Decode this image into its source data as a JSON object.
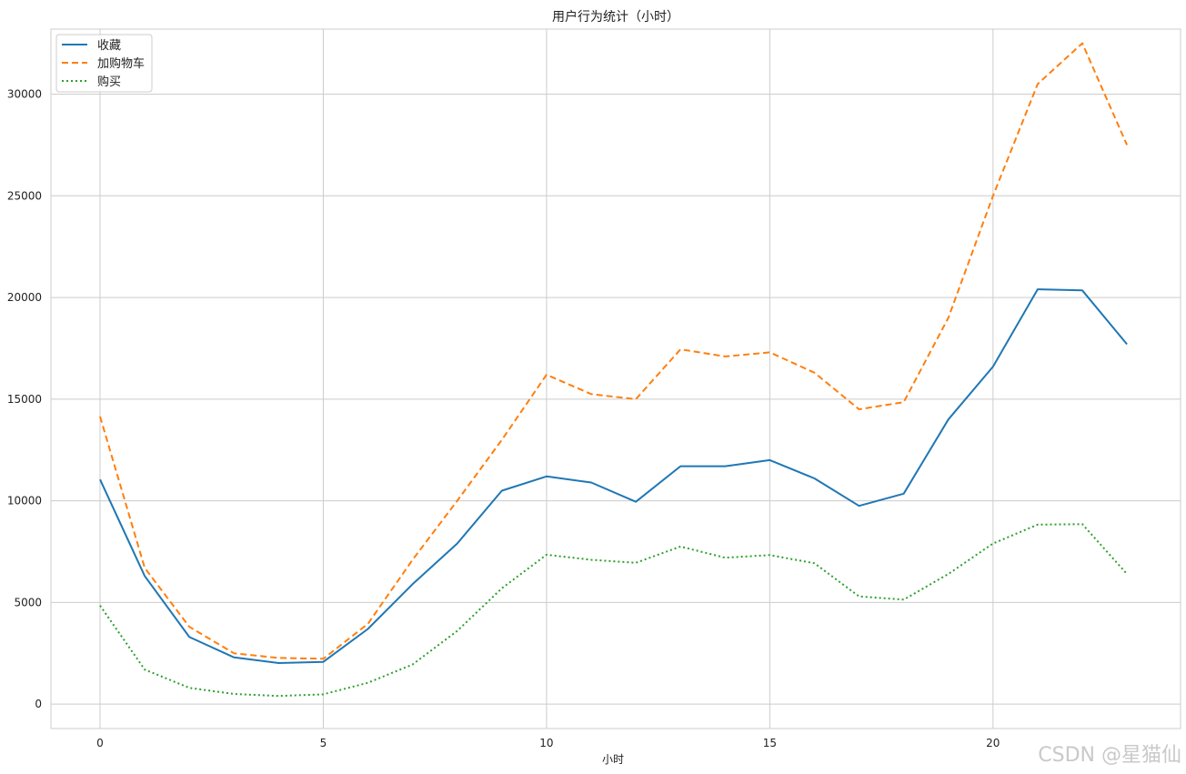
{
  "chart_data": {
    "type": "line",
    "title": "用户行为统计（小时）",
    "xlabel": "小时",
    "ylabel": "",
    "x": [
      0,
      1,
      2,
      3,
      4,
      5,
      6,
      7,
      8,
      9,
      10,
      11,
      12,
      13,
      14,
      15,
      16,
      17,
      18,
      19,
      20,
      21,
      22,
      23
    ],
    "xticks": [
      0,
      5,
      10,
      15,
      20
    ],
    "yticks": [
      0,
      5000,
      10000,
      15000,
      20000,
      25000,
      30000
    ],
    "xlim": [
      -1.1,
      24.2
    ],
    "ylim": [
      -1200,
      33200
    ],
    "grid": true,
    "legend_position": "top-left",
    "series": [
      {
        "name": "收藏",
        "color": "#1f77b4",
        "style": "solid",
        "values": [
          11050,
          6300,
          3300,
          2300,
          2020,
          2080,
          3700,
          5900,
          7900,
          10500,
          11200,
          10900,
          9950,
          11700,
          11700,
          12000,
          11100,
          9750,
          10350,
          14000,
          16600,
          20400,
          20350,
          17700
        ]
      },
      {
        "name": "加购物车",
        "color": "#ff7f0e",
        "style": "dashed",
        "values": [
          14150,
          6700,
          3800,
          2500,
          2270,
          2230,
          3950,
          7100,
          10000,
          13000,
          16200,
          15250,
          15000,
          17450,
          17100,
          17300,
          16300,
          14500,
          14850,
          19000,
          25000,
          30500,
          32500,
          27500
        ]
      },
      {
        "name": "购买",
        "color": "#2ca02c",
        "style": "dotted",
        "values": [
          4850,
          1700,
          800,
          500,
          400,
          480,
          1050,
          1950,
          3600,
          5700,
          7350,
          7100,
          6950,
          7750,
          7200,
          7330,
          6930,
          5300,
          5140,
          6400,
          7900,
          8830,
          8850,
          6400
        ]
      }
    ]
  },
  "watermark": "CSDN @星猫仙"
}
